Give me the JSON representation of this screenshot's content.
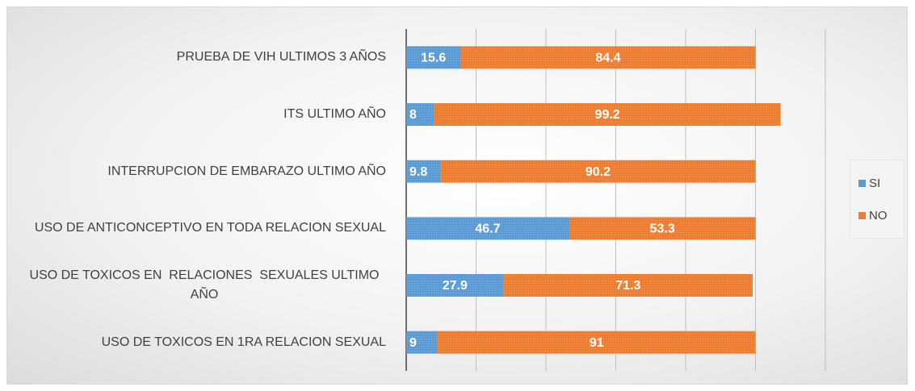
{
  "chart_data": {
    "type": "stacked_bar_horizontal",
    "categories": [
      "PRUEBA DE VIH ULTIMOS 3 AÑOS",
      "ITS ULTIMO AÑO",
      "INTERRUPCION DE EMBARAZO ULTIMO AÑO",
      "USO DE ANTICONCEPTIVO EN TODA RELACION SEXUAL",
      "USO DE TOXICOS EN  RELACIONES  SEXUALES ULTIMO AÑO",
      "USO DE TOXICOS EN 1RA RELACION SEXUAL"
    ],
    "series": [
      {
        "name": "SI",
        "color": "#5b9bd5",
        "values": [
          15.6,
          8,
          9.8,
          46.7,
          27.9,
          9
        ]
      },
      {
        "name": "NO",
        "color": "#ed7d31",
        "values": [
          84.4,
          99.2,
          90.2,
          53.3,
          71.3,
          91
        ]
      }
    ],
    "xlim": [
      0,
      120
    ],
    "xticks": [
      0,
      20,
      40,
      60,
      80,
      100,
      120
    ],
    "grid": true,
    "legend": "right"
  }
}
